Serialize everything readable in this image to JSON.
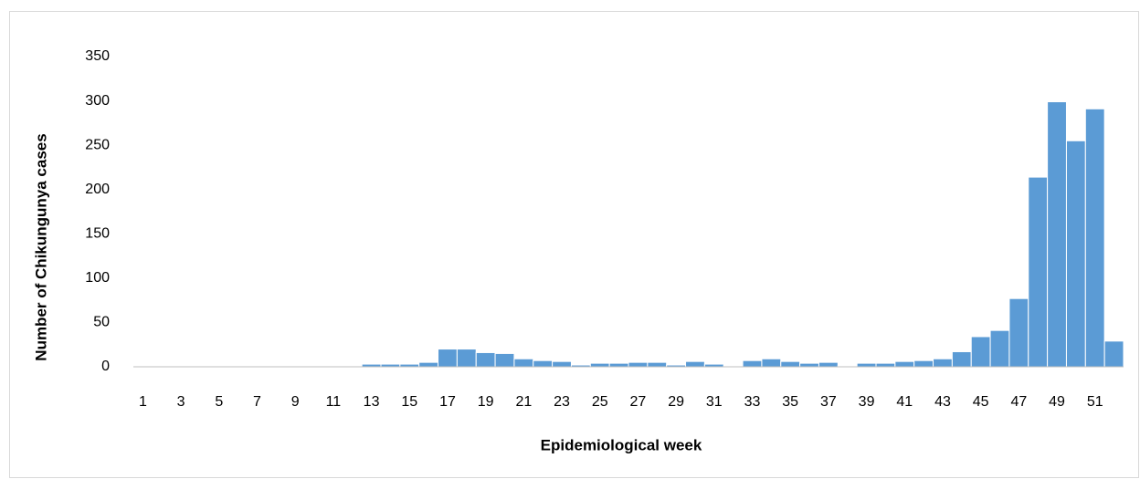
{
  "chart_data": {
    "type": "bar",
    "y_label": "Number of  Chikungunya cases",
    "x_label": "Epidemiological week",
    "categories": [
      "1",
      null,
      "3",
      null,
      "5",
      null,
      "7",
      null,
      "9",
      null,
      "11",
      null,
      "13",
      null,
      "15",
      null,
      "17",
      null,
      "19",
      null,
      "21",
      null,
      "23",
      null,
      "25",
      null,
      "27",
      null,
      "29",
      null,
      "31",
      null,
      "33",
      null,
      "35",
      null,
      "37",
      null,
      "39",
      null,
      "41",
      null,
      "43",
      null,
      "45",
      null,
      "47",
      null,
      "49",
      null,
      "51",
      null
    ],
    "values": [
      0,
      0,
      0,
      0,
      0,
      0,
      1,
      0,
      0,
      0,
      0,
      0,
      3,
      3,
      3,
      5,
      20,
      20,
      16,
      15,
      9,
      7,
      6,
      2,
      4,
      4,
      5,
      5,
      2,
      6,
      3,
      1,
      7,
      9,
      6,
      4,
      5,
      1,
      4,
      4,
      6,
      7,
      9,
      17,
      34,
      41,
      77,
      214,
      299,
      255,
      291,
      29
    ],
    "color": "#5b9bd5",
    "ylim": [
      0,
      350
    ],
    "yticks": [
      0,
      50,
      100,
      150,
      200,
      250,
      300,
      350
    ],
    "grid": false
  }
}
